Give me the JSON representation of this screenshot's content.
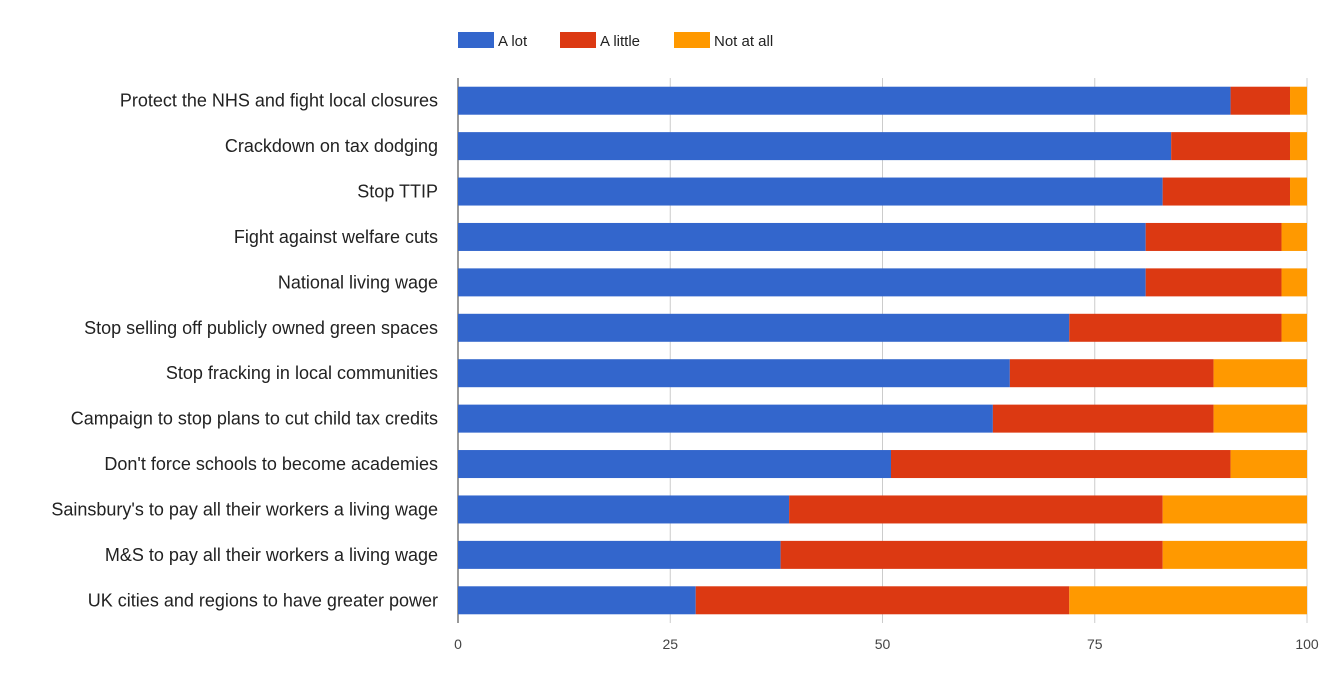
{
  "chart_data": {
    "type": "bar",
    "orientation": "horizontal",
    "stacked": true,
    "title": "",
    "xlabel": "",
    "ylabel": "",
    "xlim": [
      0,
      100
    ],
    "x_ticks": [
      "0",
      "25",
      "50",
      "75",
      "100"
    ],
    "grid": true,
    "legend_position": "top",
    "categories": [
      "Protect the NHS and fight local closures",
      "Crackdown on tax dodging",
      "Stop TTIP",
      "Fight against welfare cuts",
      "National living wage",
      "Stop selling off publicly owned green spaces",
      "Stop fracking in local communities",
      "Campaign to stop plans to cut child tax credits",
      "Don't force schools to become academies",
      "Sainsbury's to pay all their workers a living wage",
      "M&S to pay all their workers a living wage",
      "UK cities and regions to have greater power"
    ],
    "series": [
      {
        "name": "A lot",
        "color": "#3366cc",
        "values": [
          91,
          84,
          83,
          81,
          81,
          72,
          65,
          63,
          51,
          39,
          38,
          28
        ]
      },
      {
        "name": "A little",
        "color": "#dc3912",
        "values": [
          7,
          14,
          15,
          16,
          16,
          25,
          24,
          26,
          40,
          44,
          45,
          44
        ]
      },
      {
        "name": "Not at all",
        "color": "#ff9900",
        "values": [
          2,
          2,
          2,
          3,
          3,
          3,
          11,
          11,
          9,
          17,
          17,
          28
        ]
      }
    ]
  }
}
